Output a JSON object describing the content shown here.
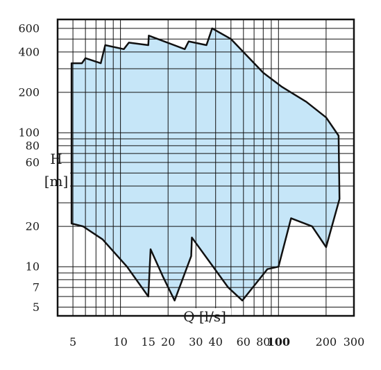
{
  "chart_data": {
    "type": "area",
    "title": "",
    "xlabel": "Q [l/s]",
    "ylabel_name": "H",
    "ylabel_unit": "[m]",
    "x_scale": "log",
    "y_scale": "log",
    "xlim": [
      4,
      300
    ],
    "ylim": [
      4.3,
      700
    ],
    "x_ticks": [
      5,
      10,
      15,
      20,
      30,
      40,
      60,
      80,
      100,
      200,
      300
    ],
    "x_tick_labels": [
      "5",
      "10",
      "15",
      "20",
      "30",
      "40",
      "60",
      "80",
      "100",
      "200",
      "300"
    ],
    "x_tick_bold": [
      false,
      false,
      false,
      false,
      false,
      false,
      false,
      false,
      true,
      false,
      false
    ],
    "y_ticks": [
      5,
      7,
      10,
      20,
      60,
      80,
      100,
      200,
      400,
      600
    ],
    "y_tick_labels": [
      "5",
      "7",
      "10",
      "20",
      "60",
      "80",
      "100",
      "200",
      "400",
      "600"
    ],
    "grid": true,
    "fill_color": "#c6e6f8",
    "envelope": [
      {
        "x": 4.9,
        "y": 21
      },
      {
        "x": 4.9,
        "y": 330
      },
      {
        "x": 5.7,
        "y": 330
      },
      {
        "x": 6.0,
        "y": 360
      },
      {
        "x": 7.5,
        "y": 330
      },
      {
        "x": 8.0,
        "y": 450
      },
      {
        "x": 10.5,
        "y": 420
      },
      {
        "x": 11.3,
        "y": 470
      },
      {
        "x": 15.0,
        "y": 450
      },
      {
        "x": 15.1,
        "y": 530
      },
      {
        "x": 25.5,
        "y": 420
      },
      {
        "x": 27.0,
        "y": 480
      },
      {
        "x": 35.0,
        "y": 450
      },
      {
        "x": 38.0,
        "y": 600
      },
      {
        "x": 50.0,
        "y": 500
      },
      {
        "x": 80.0,
        "y": 280
      },
      {
        "x": 105.0,
        "y": 220
      },
      {
        "x": 150.0,
        "y": 170
      },
      {
        "x": 200.0,
        "y": 130
      },
      {
        "x": 240.0,
        "y": 95
      },
      {
        "x": 243.0,
        "y": 32
      },
      {
        "x": 200.0,
        "y": 14
      },
      {
        "x": 163.0,
        "y": 20
      },
      {
        "x": 120.0,
        "y": 23
      },
      {
        "x": 100.0,
        "y": 10
      },
      {
        "x": 85.0,
        "y": 9.6
      },
      {
        "x": 59.0,
        "y": 5.6
      },
      {
        "x": 48.0,
        "y": 7.0
      },
      {
        "x": 28.3,
        "y": 16.5
      },
      {
        "x": 28.0,
        "y": 12.0
      },
      {
        "x": 22.0,
        "y": 5.6
      },
      {
        "x": 18.5,
        "y": 8.5
      },
      {
        "x": 15.5,
        "y": 13.5
      },
      {
        "x": 15.0,
        "y": 6.0
      },
      {
        "x": 11.0,
        "y": 10.0
      },
      {
        "x": 7.7,
        "y": 16.0
      },
      {
        "x": 5.8,
        "y": 20.0
      },
      {
        "x": 4.9,
        "y": 21
      }
    ]
  }
}
